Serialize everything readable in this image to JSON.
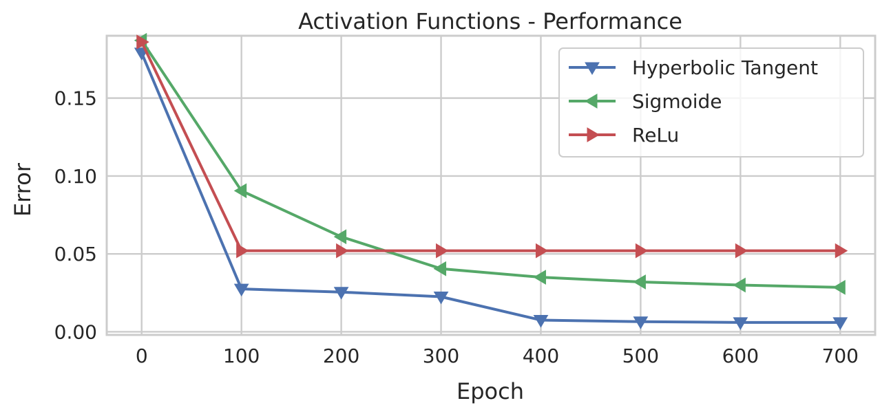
{
  "chart_data": {
    "type": "line",
    "title": "Activation Functions - Performance",
    "xlabel": "Epoch",
    "ylabel": "Error",
    "x": [
      0,
      100,
      200,
      300,
      400,
      500,
      600,
      700
    ],
    "xlim": [
      -35,
      735
    ],
    "ylim": [
      -0.002,
      0.19
    ],
    "xticks": [
      0,
      100,
      200,
      300,
      400,
      500,
      600,
      700
    ],
    "xtick_labels": [
      "0",
      "100",
      "200",
      "300",
      "400",
      "500",
      "600",
      "700"
    ],
    "yticks": [
      0.0,
      0.05,
      0.1,
      0.15
    ],
    "ytick_labels": [
      "0.00",
      "0.05",
      "0.10",
      "0.15"
    ],
    "grid": true,
    "legend_position": "top-right",
    "series": [
      {
        "name": "Hyperbolic Tangent",
        "color": "#4c72b0",
        "marker": "triangle-down",
        "values": [
          0.179,
          0.0275,
          0.0255,
          0.0225,
          0.0075,
          0.0065,
          0.006,
          0.006
        ]
      },
      {
        "name": "Sigmoide",
        "color": "#55a868",
        "marker": "triangle-left",
        "values": [
          0.187,
          0.0905,
          0.061,
          0.0405,
          0.035,
          0.032,
          0.03,
          0.0285
        ]
      },
      {
        "name": "ReLu",
        "color": "#c44e52",
        "marker": "triangle-right",
        "values": [
          0.186,
          0.052,
          0.052,
          0.052,
          0.052,
          0.052,
          0.052,
          0.052
        ]
      }
    ]
  }
}
